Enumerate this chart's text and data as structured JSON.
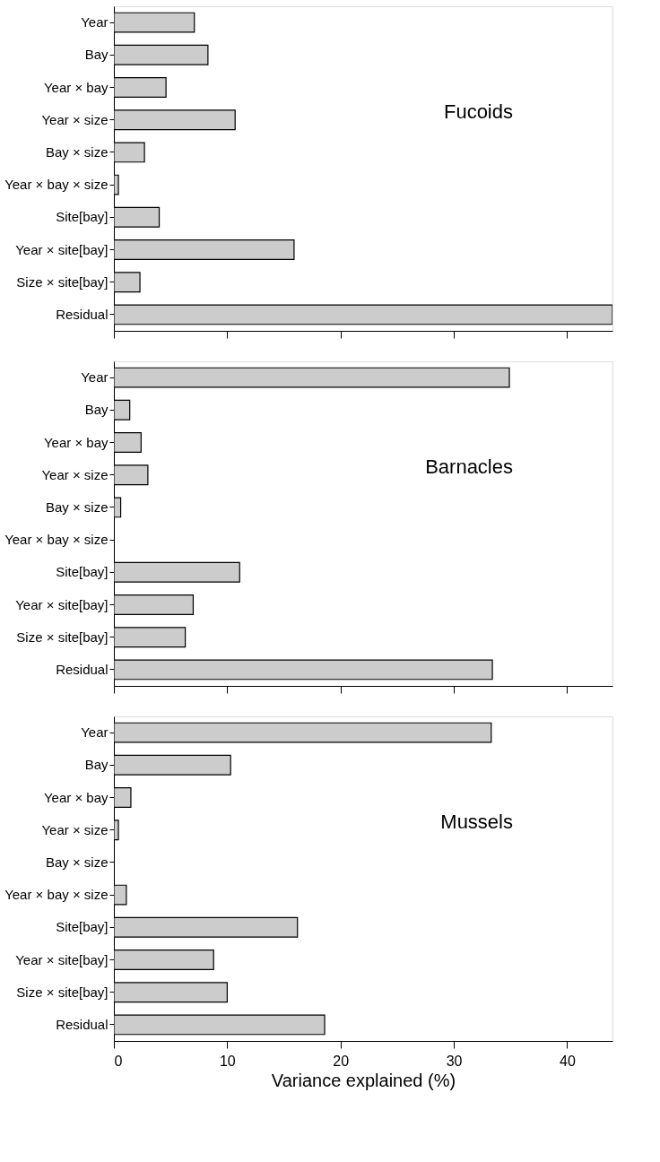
{
  "chart_data": [
    {
      "type": "bar",
      "orientation": "horizontal",
      "categories": [
        "Year",
        "Bay",
        "Year × bay",
        "Year × size",
        "Bay × size",
        "Year × bay × size",
        "Site[bay]",
        "Year × site[bay]",
        "Size × site[bay]",
        "Residual"
      ],
      "values": [
        7.1,
        8.3,
        4.6,
        10.7,
        2.7,
        0.4,
        4.0,
        15.9,
        2.3,
        44
      ],
      "color": "#cccccc",
      "xlim": [
        0,
        44
      ],
      "xticks": [
        {
          "value": 0,
          "label": null
        },
        {
          "value": 10,
          "label": null
        },
        {
          "value": 20,
          "label": null
        },
        {
          "value": 30,
          "label": null
        },
        {
          "value": 40,
          "label": null
        }
      ],
      "tick_labels": "y",
      "grid": false,
      "annotations": [
        "Fucoids"
      ]
    },
    {
      "type": "bar",
      "orientation": "horizontal",
      "categories": [
        "Year",
        "Bay",
        "Year × bay",
        "Year × size",
        "Bay × size",
        "Year × bay × size",
        "Site[bay]",
        "Year × site[bay]",
        "Size × site[bay]",
        "Residual"
      ],
      "values": [
        34.9,
        1.4,
        2.4,
        3.0,
        0.6,
        0,
        11.1,
        7.0,
        6.3,
        33.4
      ],
      "color": "#cccccc",
      "xlim": [
        0,
        44
      ],
      "xticks": [
        {
          "value": 0,
          "label": null
        },
        {
          "value": 10,
          "label": null
        },
        {
          "value": 20,
          "label": null
        },
        {
          "value": 30,
          "label": null
        },
        {
          "value": 40,
          "label": null
        }
      ],
      "tick_labels": "y",
      "grid": false,
      "annotations": [
        "Barnacles"
      ]
    },
    {
      "type": "bar",
      "orientation": "horizontal",
      "categories": [
        "Year",
        "Bay",
        "Year × bay",
        "Year × size",
        "Bay × size",
        "Year × bay × size",
        "Site[bay]",
        "Year × site[bay]",
        "Size × site[bay]",
        "Residual"
      ],
      "values": [
        33.3,
        10.3,
        1.5,
        0.4,
        0,
        1.1,
        16.2,
        8.8,
        10.0,
        18.6
      ],
      "color": "#cccccc",
      "xlim": [
        0,
        44
      ],
      "xticks": [
        0,
        10,
        20,
        30,
        40
      ],
      "xlabel": "Variance explained (%)",
      "grid": false,
      "annotations": [
        "Mussels"
      ]
    }
  ]
}
